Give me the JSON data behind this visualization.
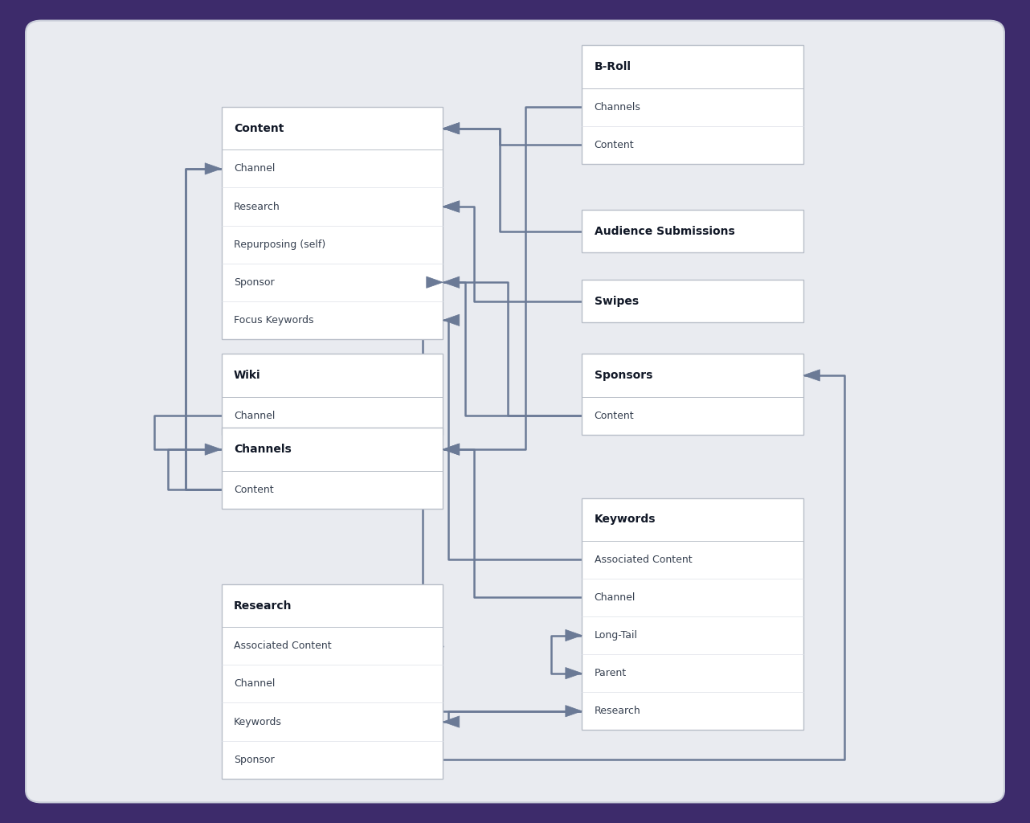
{
  "bg_outer": "#3d2b6b",
  "bg_inner": "#e9ebf0",
  "box_fill": "#ffffff",
  "box_edge": "#b8bec8",
  "header_color": "#111827",
  "field_color": "#374151",
  "line_color": "#6b7a96",
  "lw": 1.8,
  "header_fs": 10,
  "field_fs": 9,
  "tables": {
    "content": {
      "title": "Content",
      "fields": [
        "Channel",
        "Research",
        "Repurposing (self)",
        "Sponsor",
        "Focus Keywords"
      ],
      "col": 0,
      "row": 1
    },
    "wiki": {
      "title": "Wiki",
      "fields": [
        "Channel"
      ],
      "col": 0,
      "row": 3
    },
    "channels": {
      "title": "Channels",
      "fields": [
        "Content"
      ],
      "col": 0,
      "row": 4
    },
    "research": {
      "title": "Research",
      "fields": [
        "Associated Content",
        "Channel",
        "Keywords",
        "Sponsor"
      ],
      "col": 0,
      "row": 6
    },
    "broll": {
      "title": "B-Roll",
      "fields": [
        "Channels",
        "Content"
      ],
      "col": 1,
      "row": 0
    },
    "audience": {
      "title": "Audience Submissions",
      "fields": [],
      "col": 1,
      "row": 2
    },
    "swipes": {
      "title": "Swipes",
      "fields": [],
      "col": 1,
      "row": 3
    },
    "sponsors": {
      "title": "Sponsors",
      "fields": [
        "Content"
      ],
      "col": 1,
      "row": 4
    },
    "keywords": {
      "title": "Keywords",
      "fields": [
        "Associated Content",
        "Channel",
        "Long-Tail",
        "Parent",
        "Research"
      ],
      "col": 1,
      "row": 5
    }
  }
}
